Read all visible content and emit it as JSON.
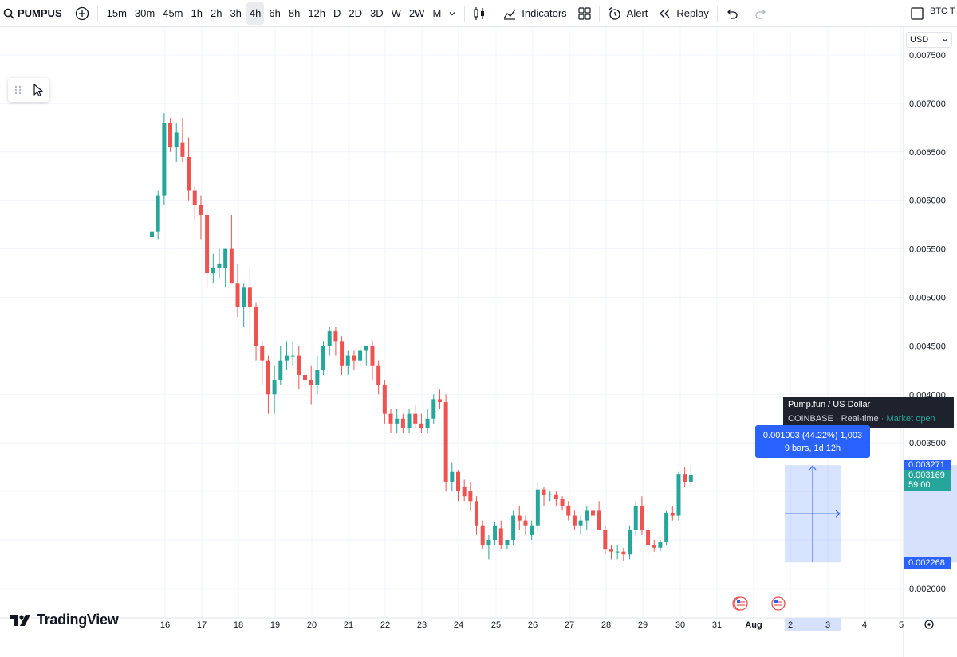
{
  "toolbar": {
    "symbol": "PUMPUS",
    "intervals": [
      "15m",
      "30m",
      "45m",
      "1h",
      "2h",
      "3h",
      "4h",
      "6h",
      "8h",
      "12h",
      "D",
      "2D",
      "3D",
      "W",
      "2W",
      "M"
    ],
    "active_interval": "4h",
    "indicators_label": "Indicators",
    "alert_label": "Alert",
    "replay_label": "Replay",
    "compare_symbol": "BTC T"
  },
  "axis": {
    "currency": "USD",
    "price_ticks": [
      "0.007500",
      "0.007000",
      "0.006500",
      "0.006000",
      "0.005500",
      "0.005000",
      "0.004500",
      "0.004000",
      "0.003500",
      "0.003000",
      "0.002500",
      "0.002000"
    ],
    "date_ticks": [
      "16",
      "17",
      "18",
      "19",
      "20",
      "21",
      "22",
      "23",
      "24",
      "25",
      "26",
      "27",
      "28",
      "29",
      "30",
      "31",
      "Aug",
      "2",
      "3",
      "4",
      "5"
    ]
  },
  "price_tags": {
    "upper": "0.003271",
    "current": "0.003169",
    "countdown": "59:00",
    "lower": "0.002268"
  },
  "tooltip": {
    "title": "Pump.fun / US Dollar",
    "exchange": "COINBASE",
    "feed": "Real-time",
    "status": "Market open"
  },
  "measure": {
    "line1": "0.001003 (44.22%) 1,003",
    "line2": "9 bars, 1d 12h"
  },
  "branding": {
    "logo_text": "TradingView"
  },
  "colors": {
    "up": "#26a69a",
    "down": "#ef5350",
    "accent": "#2962ff",
    "grid": "#f0f3fa"
  },
  "chart_data": {
    "type": "candlestick",
    "interval": "4h",
    "ylim": [
      0.0018,
      0.0078
    ],
    "candles": [
      [
        0.00562,
        0.0057,
        0.0055,
        0.00568
      ],
      [
        0.00568,
        0.0061,
        0.0056,
        0.00605
      ],
      [
        0.00605,
        0.0069,
        0.00595,
        0.0068
      ],
      [
        0.0068,
        0.00685,
        0.0065,
        0.00655
      ],
      [
        0.00655,
        0.0068,
        0.0064,
        0.0067
      ],
      [
        0.0066,
        0.00685,
        0.0064,
        0.00645
      ],
      [
        0.00645,
        0.00665,
        0.006,
        0.0061
      ],
      [
        0.0061,
        0.00615,
        0.0058,
        0.00595
      ],
      [
        0.00595,
        0.00605,
        0.0056,
        0.00585
      ],
      [
        0.00585,
        0.0059,
        0.0051,
        0.00525
      ],
      [
        0.00525,
        0.00545,
        0.00515,
        0.0053
      ],
      [
        0.0053,
        0.0055,
        0.0052,
        0.00535
      ],
      [
        0.0053,
        0.0055,
        0.0051,
        0.0055
      ],
      [
        0.0055,
        0.00585,
        0.0052,
        0.00515
      ],
      [
        0.00515,
        0.00535,
        0.0048,
        0.0049
      ],
      [
        0.0049,
        0.00515,
        0.0047,
        0.0051
      ],
      [
        0.0051,
        0.0053,
        0.0046,
        0.0049
      ],
      [
        0.0049,
        0.00495,
        0.00435,
        0.0045
      ],
      [
        0.0045,
        0.00455,
        0.0041,
        0.00435
      ],
      [
        0.00435,
        0.0044,
        0.0038,
        0.004
      ],
      [
        0.004,
        0.0043,
        0.0038,
        0.00415
      ],
      [
        0.00415,
        0.0045,
        0.0041,
        0.00435
      ],
      [
        0.00435,
        0.00455,
        0.00425,
        0.0044
      ],
      [
        0.0044,
        0.00455,
        0.0043,
        0.0044
      ],
      [
        0.0044,
        0.0045,
        0.00405,
        0.0042
      ],
      [
        0.0042,
        0.00425,
        0.00395,
        0.00415
      ],
      [
        0.00415,
        0.0043,
        0.0039,
        0.0041
      ],
      [
        0.0041,
        0.0044,
        0.004,
        0.00425
      ],
      [
        0.00425,
        0.00455,
        0.0042,
        0.0045
      ],
      [
        0.0045,
        0.0047,
        0.0044,
        0.00465
      ],
      [
        0.00465,
        0.0047,
        0.0044,
        0.00455
      ],
      [
        0.00455,
        0.0046,
        0.0042,
        0.0043
      ],
      [
        0.0043,
        0.00445,
        0.0042,
        0.0044
      ],
      [
        0.0044,
        0.00445,
        0.00425,
        0.00435
      ],
      [
        0.00435,
        0.0045,
        0.0043,
        0.00445
      ],
      [
        0.00445,
        0.0045,
        0.0043,
        0.0045
      ],
      [
        0.0045,
        0.00455,
        0.00415,
        0.0043
      ],
      [
        0.0043,
        0.00435,
        0.004,
        0.0041
      ],
      [
        0.0041,
        0.00415,
        0.0037,
        0.0038
      ],
      [
        0.0038,
        0.00385,
        0.0036,
        0.0037
      ],
      [
        0.0037,
        0.00385,
        0.0036,
        0.00375
      ],
      [
        0.00375,
        0.0038,
        0.0036,
        0.00365
      ],
      [
        0.00365,
        0.00385,
        0.0036,
        0.0038
      ],
      [
        0.0038,
        0.0039,
        0.00365,
        0.0037
      ],
      [
        0.0037,
        0.0038,
        0.0036,
        0.00365
      ],
      [
        0.00365,
        0.00385,
        0.0036,
        0.00375
      ],
      [
        0.00375,
        0.004,
        0.0037,
        0.00395
      ],
      [
        0.00395,
        0.00405,
        0.00385,
        0.00392
      ],
      [
        0.00392,
        0.004,
        0.003,
        0.0031
      ],
      [
        0.0031,
        0.0033,
        0.003,
        0.0032
      ],
      [
        0.0032,
        0.00322,
        0.0029,
        0.003
      ],
      [
        0.00305,
        0.00312,
        0.0029,
        0.00295
      ],
      [
        0.003,
        0.0031,
        0.0028,
        0.0029
      ],
      [
        0.0029,
        0.00295,
        0.00255,
        0.00265
      ],
      [
        0.00265,
        0.0027,
        0.0024,
        0.00245
      ],
      [
        0.00245,
        0.00255,
        0.0023,
        0.0025
      ],
      [
        0.0025,
        0.00268,
        0.00245,
        0.00265
      ],
      [
        0.00262,
        0.0027,
        0.0024,
        0.00245
      ],
      [
        0.00245,
        0.0025,
        0.0024,
        0.0025
      ],
      [
        0.0025,
        0.0028,
        0.00245,
        0.00275
      ],
      [
        0.00275,
        0.00285,
        0.0026,
        0.0027
      ],
      [
        0.0027,
        0.00275,
        0.00255,
        0.00265
      ],
      [
        0.00255,
        0.0027,
        0.0025,
        0.00265
      ],
      [
        0.00265,
        0.0031,
        0.00258,
        0.00302
      ],
      [
        0.00302,
        0.00305,
        0.00285,
        0.00296
      ],
      [
        0.00296,
        0.003,
        0.0029,
        0.00297
      ],
      [
        0.00297,
        0.003,
        0.00285,
        0.00292
      ],
      [
        0.00292,
        0.00295,
        0.0028,
        0.00285
      ],
      [
        0.00285,
        0.0029,
        0.0027,
        0.00275
      ],
      [
        0.00275,
        0.0028,
        0.0026,
        0.00265
      ],
      [
        0.00265,
        0.00275,
        0.00255,
        0.0027
      ],
      [
        0.0027,
        0.00285,
        0.0026,
        0.0028
      ],
      [
        0.0028,
        0.0029,
        0.0027,
        0.00275
      ],
      [
        0.0028,
        0.0029,
        0.0026,
        0.0026
      ],
      [
        0.0026,
        0.00265,
        0.00235,
        0.0024
      ],
      [
        0.0024,
        0.00245,
        0.0023,
        0.00238
      ],
      [
        0.00238,
        0.00245,
        0.0023,
        0.00238
      ],
      [
        0.00238,
        0.00242,
        0.00228,
        0.00235
      ],
      [
        0.00235,
        0.00265,
        0.0023,
        0.0026
      ],
      [
        0.0026,
        0.0029,
        0.00255,
        0.00285
      ],
      [
        0.00285,
        0.00295,
        0.00255,
        0.0026
      ],
      [
        0.0026,
        0.00265,
        0.00235,
        0.00245
      ],
      [
        0.00245,
        0.0025,
        0.00238,
        0.00242
      ],
      [
        0.00242,
        0.0025,
        0.00238,
        0.00248
      ],
      [
        0.00248,
        0.0028,
        0.00245,
        0.00278
      ],
      [
        0.00278,
        0.00285,
        0.0027,
        0.00275
      ],
      [
        0.00275,
        0.0032,
        0.0027,
        0.00318
      ],
      [
        0.00318,
        0.00325,
        0.00305,
        0.0031
      ],
      [
        0.0031,
        0.00327,
        0.00305,
        0.00317
      ]
    ]
  }
}
